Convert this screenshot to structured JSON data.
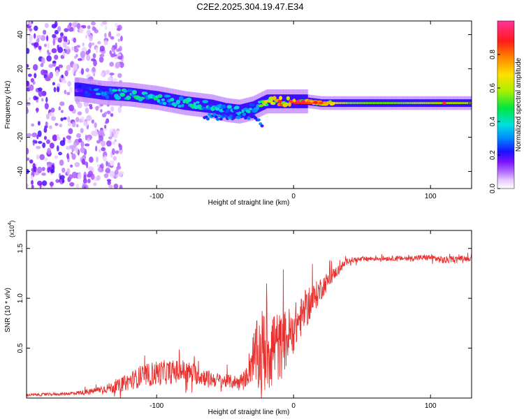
{
  "figure_title": "C2E2.2025.304.19.47.E34",
  "colors": {
    "snr_line": "#e8312e",
    "axis": "#000000",
    "colormap": [
      "#ffffff",
      "#e6c9ff",
      "#b46cff",
      "#7a13ff",
      "#1a0fff",
      "#0088ff",
      "#00e0e0",
      "#00e640",
      "#a6f000",
      "#ffe000",
      "#ff8800",
      "#ff1a1a",
      "#ff3399"
    ]
  },
  "chart_data": [
    {
      "type": "heatmap",
      "title": "C2E2.2025.304.19.47.E34",
      "xlabel": "Height of straight line (km)",
      "ylabel": "Frequency (Hz)",
      "xlim": [
        -195,
        130
      ],
      "ylim": [
        -50,
        48
      ],
      "x_ticks": [
        -100,
        0,
        100
      ],
      "x_tick_labels": [
        "-100",
        "0",
        "100"
      ],
      "y_ticks": [
        -40,
        -20,
        0,
        20,
        40
      ],
      "y_tick_labels": [
        "-40",
        "-20",
        "0",
        "20",
        "40"
      ],
      "colorbar": {
        "label": "Normalized spectral amplitude",
        "range": [
          0,
          1
        ],
        "ticks": [
          0,
          0.2,
          0.4,
          0.6,
          0.8
        ],
        "tick_labels": [
          "0.0",
          "0.2",
          "0.4",
          "0.6",
          "0.8"
        ]
      },
      "ridge": {
        "description": "dominant frequency track vs height",
        "x": [
          -158,
          -140,
          -120,
          -100,
          -80,
          -60,
          -50,
          -40,
          -30,
          -20,
          -10,
          0,
          10,
          20,
          40,
          60,
          80,
          100,
          130
        ],
        "freq_hz": [
          8,
          6,
          5,
          3,
          0,
          -2,
          -4,
          -5,
          -3,
          1,
          1,
          1,
          1,
          0,
          0,
          0,
          0,
          0,
          0
        ],
        "peak_amplitude": [
          0.2,
          0.4,
          0.45,
          0.5,
          0.45,
          0.45,
          0.4,
          0.4,
          0.45,
          0.6,
          0.85,
          0.9,
          0.85,
          0.8,
          0.55,
          0.55,
          0.55,
          0.6,
          0.6
        ]
      },
      "noise_region": {
        "x_range": [
          -195,
          -125
        ],
        "freq_range": [
          -50,
          48
        ],
        "amplitude": "0.1-0.3 scattered"
      }
    },
    {
      "type": "line",
      "xlabel": "Height of straight line (km)",
      "ylabel": "SNR (10 * v/v)",
      "y_multiplier_label": "(x10",
      "y_multiplier_exp": "4",
      "y_multiplier_close": ")",
      "xlim": [
        -195,
        130
      ],
      "ylim": [
        0,
        16800
      ],
      "x_ticks": [
        -100,
        0,
        100
      ],
      "x_tick_labels": [
        "-100",
        "0",
        "100"
      ],
      "y_ticks": [
        5000,
        10000,
        15000
      ],
      "y_tick_labels": [
        "0.5",
        "1.0",
        "1.5"
      ],
      "series": [
        {
          "name": "SNR",
          "x": [
            -195,
            -170,
            -150,
            -140,
            -130,
            -120,
            -110,
            -100,
            -90,
            -80,
            -70,
            -60,
            -50,
            -40,
            -35,
            -30,
            -25,
            -20,
            -15,
            -10,
            -5,
            0,
            5,
            10,
            15,
            20,
            30,
            40,
            60,
            80,
            100,
            110,
            120,
            130
          ],
          "baseline": [
            300,
            400,
            600,
            900,
            1100,
            1700,
            2200,
            2500,
            2600,
            2700,
            2300,
            1900,
            1700,
            1600,
            2000,
            4000,
            4500,
            5000,
            5500,
            5000,
            6000,
            7000,
            8000,
            9000,
            10000,
            11000,
            12500,
            13800,
            14000,
            14000,
            14100,
            13800,
            14000,
            14000
          ],
          "noise_amplitude": [
            150,
            150,
            250,
            400,
            600,
            900,
            1100,
            1300,
            1200,
            1200,
            1000,
            800,
            700,
            700,
            900,
            2500,
            4000,
            5000,
            4000,
            3500,
            3000,
            2500,
            2000,
            1800,
            1500,
            1200,
            600,
            300,
            250,
            250,
            300,
            400,
            250,
            250
          ]
        }
      ]
    }
  ]
}
